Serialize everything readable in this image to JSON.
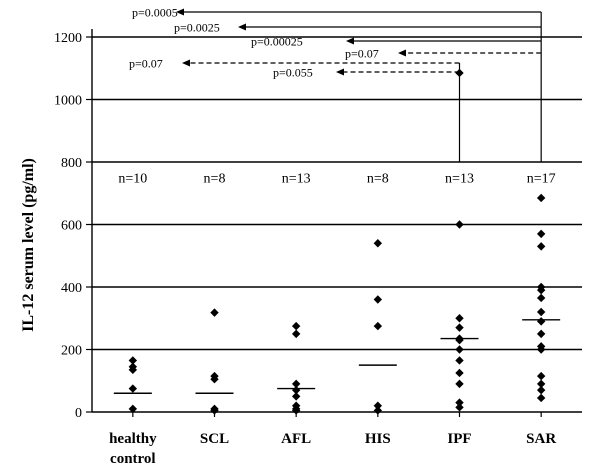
{
  "chart_data": {
    "type": "scatter",
    "ylabel": "IL-12 serum level (pg/ml)",
    "ylim": [
      0,
      1200
    ],
    "yticks": [
      0,
      200,
      400,
      600,
      800,
      1000,
      1200
    ],
    "grid": true,
    "categories": [
      {
        "label": "healthy",
        "label2": "control",
        "n": "n=10",
        "median": 60,
        "values": [
          165,
          145,
          135,
          75,
          10
        ]
      },
      {
        "label": "SCL",
        "label2": "",
        "n": "n=8",
        "median": 60,
        "values": [
          318,
          115,
          105,
          10,
          5
        ]
      },
      {
        "label": "AFL",
        "label2": "",
        "n": "n=13",
        "median": 75,
        "values": [
          275,
          250,
          90,
          70,
          50,
          20,
          10,
          5
        ]
      },
      {
        "label": "HIS",
        "label2": "",
        "n": "n=8",
        "median": 150,
        "values": [
          540,
          360,
          275,
          20,
          5
        ]
      },
      {
        "label": "IPF",
        "label2": "",
        "n": "n=13",
        "median": 235,
        "values": [
          1085,
          600,
          300,
          270,
          235,
          230,
          200,
          165,
          125,
          90,
          30,
          15
        ]
      },
      {
        "label": "SAR",
        "label2": "",
        "n": "n=17",
        "median": 295,
        "values": [
          685,
          570,
          530,
          400,
          390,
          365,
          320,
          290,
          250,
          210,
          200,
          115,
          90,
          70,
          45
        ]
      }
    ],
    "annotations": [
      {
        "text": "p=0.0005",
        "from": 5,
        "to": 0,
        "dashed": false
      },
      {
        "text": "p=0.0025",
        "from": 5,
        "to": 1,
        "dashed": false
      },
      {
        "text": "p=0.00025",
        "from": 5,
        "to": 2,
        "dashed": false
      },
      {
        "text": "p=0.07",
        "from": 5,
        "to": 4,
        "dashed": true
      },
      {
        "text": "p=0.07",
        "from": 4,
        "to": 0,
        "dashed": true
      },
      {
        "text": "p=0.055",
        "from": 4,
        "to": 3,
        "dashed": true
      }
    ]
  }
}
